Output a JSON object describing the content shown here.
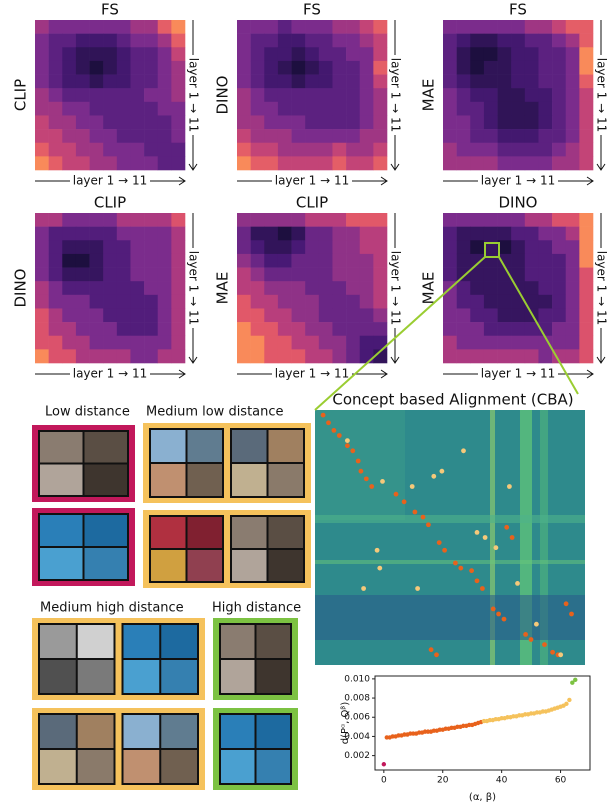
{
  "chart_data": [
    {
      "type": "heatmap",
      "title": "FS",
      "ylabel": "CLIP",
      "xlabel": "layer 1 → 11",
      "y2label": "layer 1 → 11",
      "values": [
        [
          6,
          5,
          5,
          5,
          5,
          5,
          5,
          6,
          6,
          8,
          9
        ],
        [
          5,
          4,
          4,
          3,
          3,
          3,
          4,
          5,
          5,
          6,
          8
        ],
        [
          5,
          4,
          3,
          2,
          2,
          2,
          3,
          4,
          4,
          5,
          7
        ],
        [
          5,
          4,
          3,
          2,
          1,
          2,
          3,
          4,
          4,
          5,
          6
        ],
        [
          5,
          4,
          3,
          3,
          2,
          3,
          3,
          4,
          4,
          5,
          6
        ],
        [
          6,
          5,
          4,
          4,
          4,
          4,
          4,
          4,
          5,
          5,
          6
        ],
        [
          6,
          6,
          5,
          5,
          4,
          4,
          4,
          4,
          4,
          5,
          5
        ],
        [
          7,
          6,
          6,
          5,
          5,
          4,
          4,
          4,
          4,
          4,
          5
        ],
        [
          7,
          7,
          6,
          6,
          5,
          5,
          4,
          4,
          4,
          4,
          5
        ],
        [
          8,
          7,
          7,
          6,
          6,
          5,
          5,
          5,
          4,
          4,
          4
        ],
        [
          9,
          8,
          7,
          7,
          6,
          6,
          5,
          5,
          5,
          4,
          4
        ]
      ]
    },
    {
      "type": "heatmap",
      "title": "FS",
      "ylabel": "DINO",
      "xlabel": "layer 1 → 11",
      "y2label": "layer 1 → 11",
      "values": [
        [
          5,
          5,
          5,
          4,
          5,
          5,
          5,
          6,
          6,
          7,
          8
        ],
        [
          5,
          4,
          4,
          3,
          3,
          4,
          4,
          5,
          5,
          6,
          7
        ],
        [
          5,
          4,
          3,
          3,
          2,
          3,
          4,
          4,
          5,
          5,
          7
        ],
        [
          5,
          4,
          3,
          2,
          1,
          2,
          3,
          4,
          4,
          5,
          8
        ],
        [
          5,
          4,
          3,
          3,
          2,
          3,
          3,
          4,
          4,
          5,
          7
        ],
        [
          6,
          5,
          4,
          4,
          4,
          4,
          4,
          4,
          4,
          5,
          6
        ],
        [
          6,
          5,
          5,
          4,
          4,
          4,
          4,
          4,
          4,
          5,
          6
        ],
        [
          6,
          6,
          5,
          5,
          5,
          4,
          4,
          4,
          4,
          5,
          6
        ],
        [
          7,
          6,
          6,
          6,
          5,
          5,
          5,
          5,
          5,
          6,
          6
        ],
        [
          8,
          7,
          7,
          6,
          6,
          6,
          6,
          7,
          6,
          6,
          7
        ],
        [
          9,
          8,
          8,
          7,
          7,
          7,
          7,
          8,
          7,
          7,
          8
        ]
      ]
    },
    {
      "type": "heatmap",
      "title": "FS",
      "ylabel": "MAE",
      "xlabel": "layer 1 → 11",
      "y2label": "layer 1 → 11",
      "values": [
        [
          5,
          5,
          5,
          5,
          5,
          5,
          6,
          6,
          7,
          8,
          8
        ],
        [
          4,
          3,
          2,
          2,
          3,
          3,
          4,
          4,
          5,
          6,
          8
        ],
        [
          4,
          2,
          1,
          1,
          2,
          3,
          3,
          4,
          4,
          5,
          9
        ],
        [
          4,
          2,
          1,
          2,
          2,
          3,
          3,
          4,
          4,
          5,
          9
        ],
        [
          4,
          3,
          2,
          2,
          2,
          3,
          3,
          4,
          4,
          5,
          8
        ],
        [
          5,
          4,
          3,
          3,
          2,
          2,
          3,
          3,
          4,
          5,
          7
        ],
        [
          5,
          4,
          4,
          3,
          2,
          2,
          2,
          3,
          4,
          5,
          7
        ],
        [
          5,
          5,
          4,
          3,
          2,
          2,
          2,
          3,
          4,
          5,
          7
        ],
        [
          5,
          5,
          4,
          4,
          3,
          3,
          3,
          4,
          4,
          5,
          7
        ],
        [
          6,
          5,
          5,
          5,
          4,
          4,
          4,
          4,
          5,
          6,
          7
        ],
        [
          6,
          6,
          6,
          6,
          5,
          5,
          5,
          5,
          6,
          6,
          7
        ]
      ]
    },
    {
      "type": "heatmap",
      "title": "CLIP",
      "ylabel": "DINO",
      "xlabel": "layer 1 → 11",
      "y2label": "layer 1 → 11",
      "values": [
        [
          6,
          6,
          5,
          5,
          5,
          5,
          6,
          6,
          6,
          6,
          7
        ],
        [
          5,
          4,
          4,
          4,
          4,
          4,
          5,
          5,
          5,
          5,
          6
        ],
        [
          5,
          4,
          3,
          3,
          3,
          4,
          4,
          5,
          5,
          5,
          6
        ],
        [
          5,
          4,
          2,
          2,
          3,
          4,
          4,
          5,
          5,
          5,
          6
        ],
        [
          5,
          4,
          3,
          3,
          3,
          4,
          4,
          5,
          5,
          5,
          6
        ],
        [
          6,
          5,
          4,
          4,
          4,
          4,
          4,
          4,
          5,
          5,
          6
        ],
        [
          6,
          5,
          5,
          5,
          4,
          4,
          4,
          4,
          4,
          5,
          6
        ],
        [
          7,
          6,
          5,
          5,
          5,
          4,
          4,
          4,
          4,
          5,
          6
        ],
        [
          7,
          6,
          6,
          5,
          5,
          5,
          4,
          4,
          4,
          5,
          6
        ],
        [
          7,
          7,
          6,
          6,
          5,
          5,
          5,
          5,
          5,
          5,
          6
        ],
        [
          8,
          7,
          7,
          6,
          6,
          6,
          6,
          5,
          5,
          6,
          6
        ]
      ]
    },
    {
      "type": "heatmap",
      "title": "CLIP",
      "ylabel": "MAE",
      "xlabel": "layer 1 → 11",
      "y2label": "layer 1 → 11",
      "values": [
        [
          5,
          5,
          5,
          5,
          5,
          6,
          6,
          6,
          7,
          7,
          7
        ],
        [
          4,
          2,
          2,
          1,
          2,
          4,
          4,
          5,
          5,
          6,
          6
        ],
        [
          4,
          3,
          2,
          2,
          3,
          4,
          4,
          5,
          5,
          6,
          6
        ],
        [
          5,
          4,
          3,
          3,
          4,
          4,
          4,
          5,
          5,
          5,
          6
        ],
        [
          6,
          5,
          4,
          4,
          4,
          4,
          4,
          5,
          5,
          5,
          6
        ],
        [
          6,
          6,
          5,
          5,
          5,
          4,
          4,
          4,
          5,
          5,
          6
        ],
        [
          7,
          6,
          6,
          5,
          5,
          5,
          4,
          4,
          4,
          5,
          6
        ],
        [
          7,
          7,
          6,
          6,
          5,
          5,
          4,
          4,
          4,
          4,
          5
        ],
        [
          8,
          7,
          7,
          6,
          6,
          5,
          5,
          4,
          4,
          4,
          4
        ],
        [
          8,
          8,
          7,
          7,
          6,
          6,
          5,
          5,
          4,
          3,
          3
        ],
        [
          8,
          8,
          7,
          7,
          7,
          6,
          6,
          5,
          4,
          3,
          2
        ]
      ]
    },
    {
      "type": "heatmap",
      "title": "DINO",
      "ylabel": "MAE",
      "xlabel": "layer 1 → 11",
      "y2label": "layer 1 → 11",
      "values": [
        [
          5,
          5,
          5,
          5,
          5,
          5,
          6,
          6,
          7,
          7,
          8
        ],
        [
          4,
          3,
          3,
          3,
          3,
          4,
          4,
          5,
          5,
          6,
          8
        ],
        [
          4,
          3,
          2,
          3,
          2,
          3,
          4,
          4,
          5,
          5,
          8
        ],
        [
          4,
          3,
          3,
          3,
          3,
          3,
          4,
          4,
          4,
          5,
          8
        ],
        [
          4,
          3,
          3,
          3,
          3,
          3,
          4,
          4,
          4,
          5,
          7
        ],
        [
          5,
          4,
          3,
          3,
          3,
          3,
          3,
          4,
          4,
          5,
          7
        ],
        [
          5,
          4,
          4,
          3,
          3,
          3,
          3,
          3,
          4,
          5,
          7
        ],
        [
          5,
          5,
          4,
          4,
          3,
          3,
          3,
          4,
          4,
          5,
          7
        ],
        [
          5,
          5,
          5,
          4,
          4,
          4,
          4,
          4,
          5,
          5,
          7
        ],
        [
          6,
          5,
          5,
          5,
          5,
          5,
          5,
          5,
          5,
          5,
          7
        ],
        [
          6,
          6,
          6,
          6,
          6,
          6,
          6,
          5,
          6,
          6,
          7
        ]
      ]
    },
    {
      "type": "scatter",
      "title": "Concept based Alignment (CBA)",
      "xlim": [
        0,
        100
      ],
      "ylim": [
        100,
        0
      ],
      "series": [
        {
          "color": "#e8621c",
          "x": [
            3,
            5,
            7,
            9,
            12,
            14,
            16,
            17,
            19,
            21,
            30,
            33,
            37,
            40,
            42,
            46,
            48,
            52,
            54,
            58,
            60,
            62,
            71,
            73,
            66,
            68,
            70,
            78,
            80,
            85,
            88,
            90,
            43,
            45,
            93,
            95
          ],
          "values": [
            2,
            5,
            8,
            10,
            14,
            16,
            20,
            24,
            27,
            30,
            33,
            36,
            40,
            42,
            45,
            52,
            55,
            60,
            62,
            63,
            67,
            70,
            46,
            50,
            78,
            80,
            82,
            88,
            90,
            92,
            95,
            96,
            94,
            96,
            76,
            80
          ]
        },
        {
          "color": "#f5c97a",
          "x": [
            25,
            36,
            44,
            47,
            55,
            60,
            63,
            67,
            23,
            24,
            18,
            38,
            72,
            75,
            82,
            91,
            12
          ],
          "values": [
            28,
            30,
            26,
            24,
            16,
            48,
            50,
            54,
            55,
            62,
            70,
            70,
            30,
            68,
            84,
            96,
            12
          ]
        }
      ]
    },
    {
      "type": "scatter",
      "xlabel": "(α, β)",
      "ylabel": "d(Pᵅ, Qᵝ)",
      "xlim": [
        -3,
        70
      ],
      "ylim": [
        0.0005,
        0.0103
      ],
      "xticks": [
        0,
        20,
        40,
        60
      ],
      "yticks": [
        0.002,
        0.004,
        0.006,
        0.008,
        {
          "value": 0.01,
          "label": "0.010"
        }
      ],
      "series": [
        {
          "color": "#c2185b",
          "x": [
            0
          ],
          "values": [
            0.0011
          ]
        },
        {
          "color": "#e8621c",
          "x": [
            1,
            2,
            3,
            4,
            5,
            6,
            7,
            8,
            9,
            10,
            11,
            12,
            13,
            14,
            15,
            16,
            17,
            18,
            19,
            20,
            21,
            22,
            23,
            24,
            25,
            26,
            27,
            28,
            29,
            30,
            31,
            32,
            33
          ],
          "values": [
            0.0039,
            0.0039,
            0.004,
            0.004,
            0.0041,
            0.0041,
            0.0042,
            0.0042,
            0.0043,
            0.0043,
            0.0043,
            0.0044,
            0.0044,
            0.0045,
            0.0045,
            0.0045,
            0.0046,
            0.0046,
            0.0047,
            0.0047,
            0.0048,
            0.0048,
            0.0049,
            0.0049,
            0.005,
            0.005,
            0.0051,
            0.0051,
            0.0052,
            0.0052,
            0.0053,
            0.0054,
            0.0055
          ]
        },
        {
          "color": "#f5c25c",
          "x": [
            34,
            35,
            36,
            37,
            38,
            39,
            40,
            41,
            42,
            43,
            44,
            45,
            46,
            47,
            48,
            49,
            50,
            51,
            52,
            53,
            54,
            55,
            56,
            57,
            58,
            59,
            60,
            61,
            62,
            63
          ],
          "values": [
            0.0056,
            0.0056,
            0.0057,
            0.0057,
            0.0058,
            0.0058,
            0.0059,
            0.0059,
            0.006,
            0.006,
            0.0061,
            0.0061,
            0.0062,
            0.0062,
            0.0063,
            0.0063,
            0.0064,
            0.0064,
            0.0065,
            0.0065,
            0.0066,
            0.0066,
            0.0067,
            0.0068,
            0.0069,
            0.007,
            0.0071,
            0.0072,
            0.0074,
            0.0078
          ]
        },
        {
          "color": "#7cc242",
          "x": [
            64,
            65
          ],
          "values": [
            0.0096,
            0.0099
          ]
        }
      ]
    }
  ],
  "image_groups": [
    "Low distance",
    "Medium low distance",
    "Medium high distance",
    "High distance"
  ]
}
